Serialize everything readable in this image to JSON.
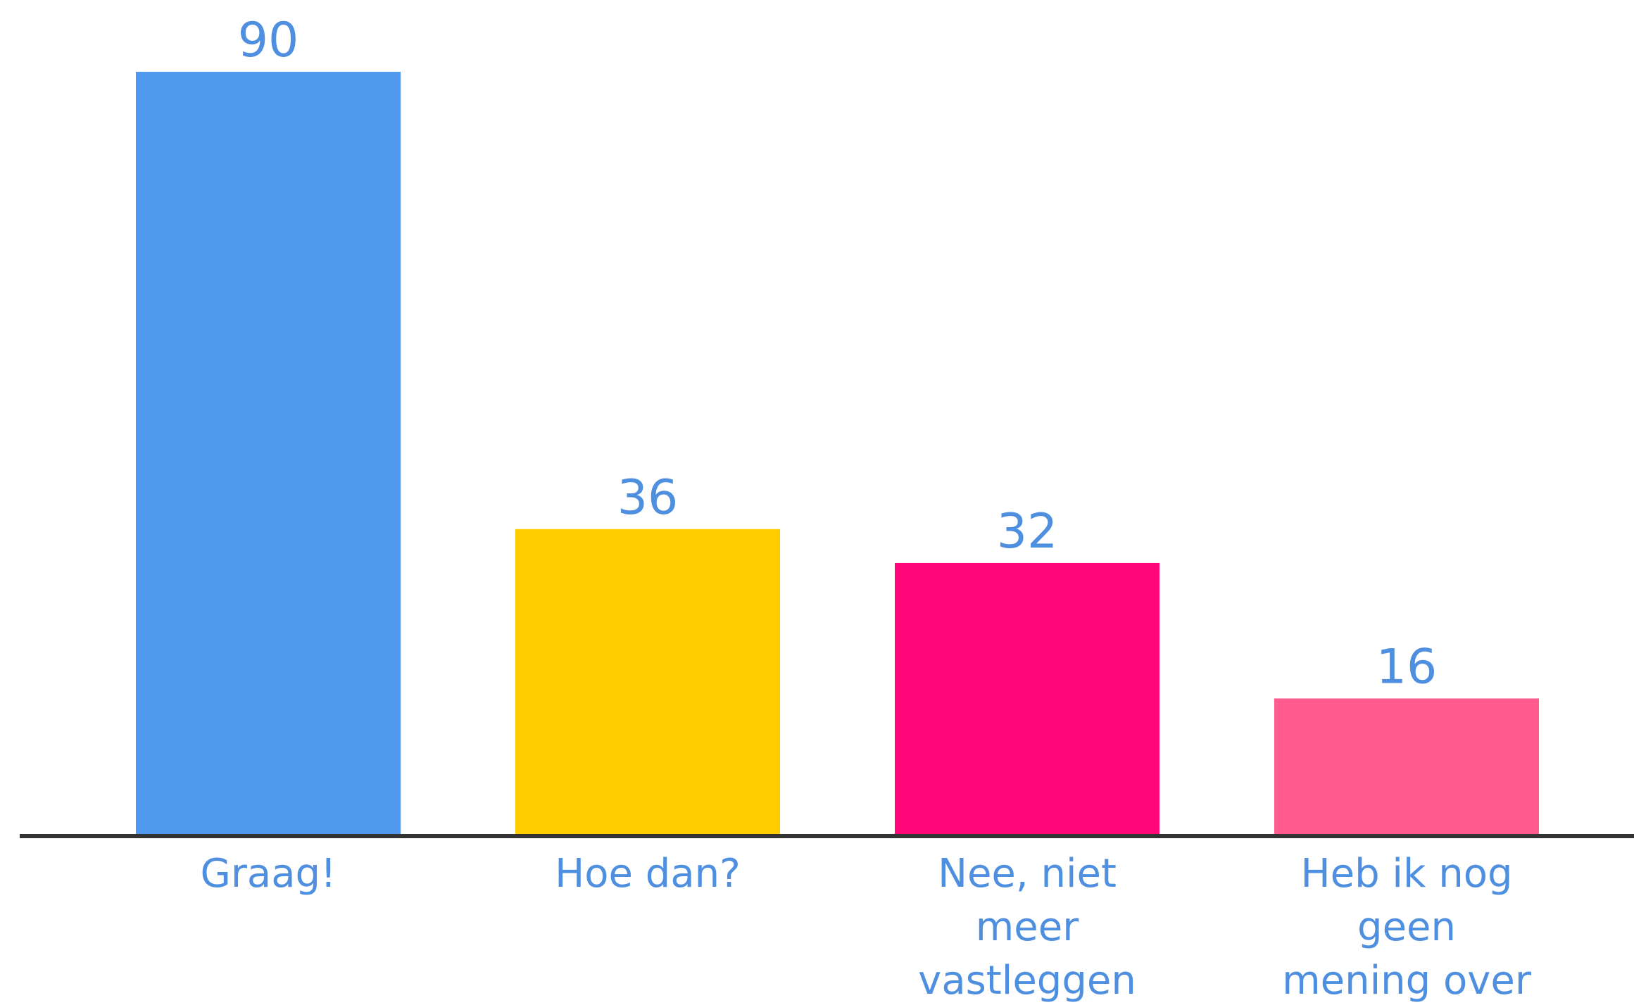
{
  "chart_data": {
    "type": "bar",
    "title": "",
    "xlabel": "",
    "ylabel": "",
    "categories": [
      "Graag!",
      "Hoe dan?",
      "Nee, niet meer vastleggen",
      "Heb ik nog geen mening over"
    ],
    "category_lines": [
      [
        "Graag!"
      ],
      [
        "Hoe dan?"
      ],
      [
        "Nee, niet",
        "meer",
        "vastleggen"
      ],
      [
        "Heb ik nog",
        "geen",
        "mening over"
      ]
    ],
    "values": [
      90,
      36,
      32,
      16
    ],
    "value_labels": [
      "90",
      "36",
      "32",
      "16"
    ],
    "ylim": [
      0,
      90
    ],
    "grid": false,
    "legend": "none",
    "colors": {
      "bars": [
        "#5099EE",
        "#FFCC00",
        "#FF0779",
        "#FF5B8F"
      ],
      "text": "#4F8FE0",
      "axis": "#333333"
    }
  }
}
